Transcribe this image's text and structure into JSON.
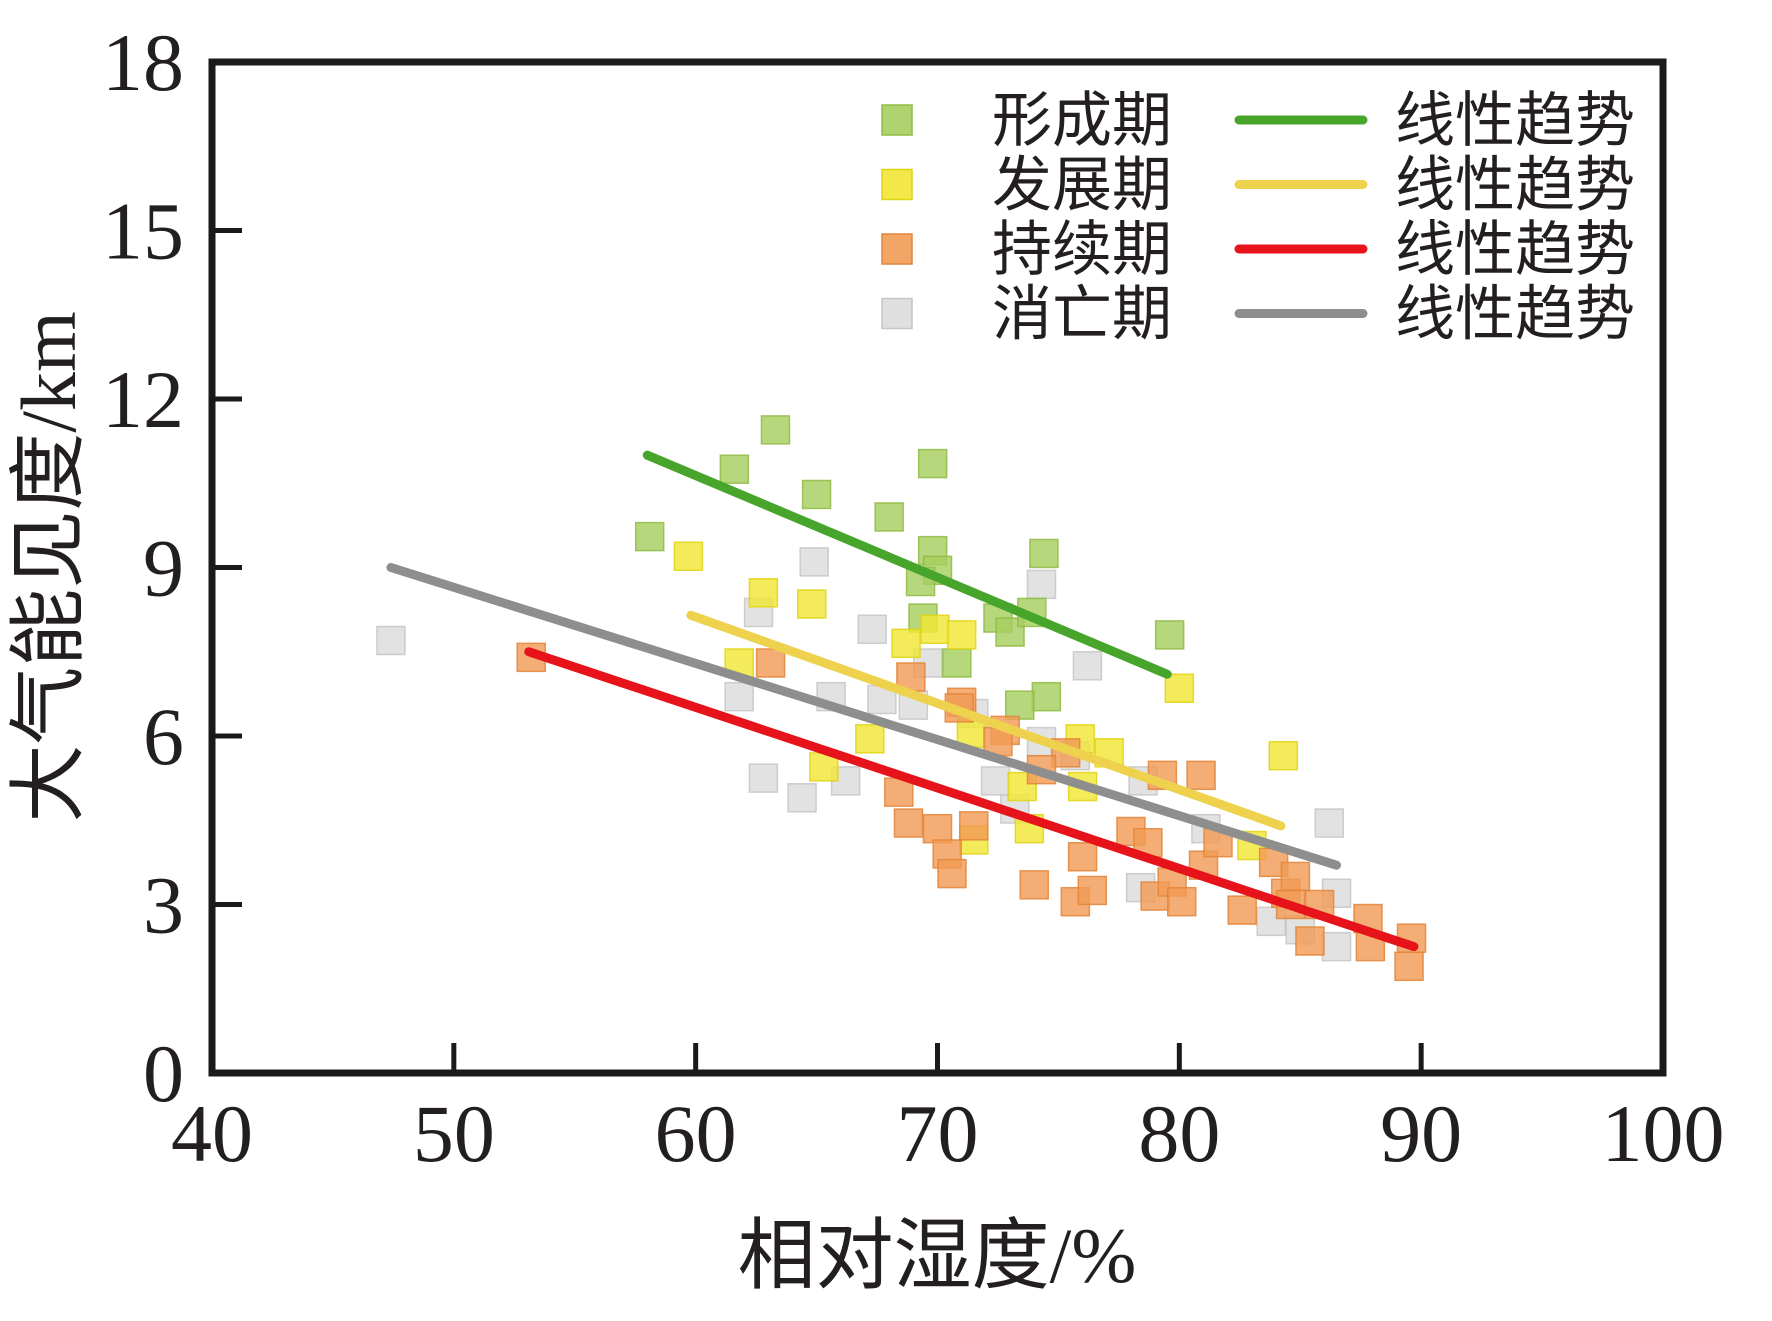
{
  "figure": {
    "background": "#ffffff",
    "frame_color": "#1a1a1a"
  },
  "chart_data": {
    "type": "scatter",
    "title": "",
    "xlabel": "相对湿度/%",
    "ylabel": "大气能见度/km",
    "xlim": [
      40,
      100
    ],
    "ylim": [
      0,
      18
    ],
    "x_ticks": [
      40,
      50,
      60,
      70,
      80,
      90,
      100
    ],
    "y_ticks": [
      0,
      3,
      6,
      9,
      12,
      15,
      18
    ],
    "grid": false,
    "legend_position": "top-inside",
    "trend_legend_label": "线性趋势",
    "series": [
      {
        "key": "formation",
        "name": "形成期",
        "marker": "square",
        "marker_color": "#a6ce5f",
        "marker_edge": "#90bb45",
        "trend_color": "#47a52b",
        "trend": {
          "x": [
            58.0,
            79.5
          ],
          "y": [
            11.0,
            7.1
          ]
        },
        "points": [
          [
            58.1,
            9.55
          ],
          [
            61.6,
            10.75
          ],
          [
            63.3,
            11.45
          ],
          [
            65.0,
            10.3
          ],
          [
            68.0,
            9.9
          ],
          [
            69.8,
            10.85
          ],
          [
            69.8,
            9.3
          ],
          [
            70.0,
            8.95
          ],
          [
            69.3,
            8.75
          ],
          [
            69.4,
            8.1
          ],
          [
            70.8,
            7.3
          ],
          [
            72.5,
            8.1
          ],
          [
            73.0,
            7.85
          ],
          [
            73.9,
            8.2
          ],
          [
            74.4,
            9.25
          ],
          [
            74.5,
            6.7
          ],
          [
            73.4,
            6.55
          ],
          [
            79.6,
            7.8
          ]
        ]
      },
      {
        "key": "development",
        "name": "发展期",
        "marker": "square",
        "marker_color": "#f2e636",
        "marker_edge": "#e0d314",
        "trend_color": "#eed24e",
        "trend": {
          "x": [
            59.8,
            84.2
          ],
          "y": [
            8.15,
            4.4
          ]
        },
        "points": [
          [
            59.7,
            9.2
          ],
          [
            61.8,
            7.3
          ],
          [
            62.8,
            8.55
          ],
          [
            64.8,
            8.35
          ],
          [
            65.3,
            5.45
          ],
          [
            67.2,
            5.95
          ],
          [
            68.7,
            7.65
          ],
          [
            69.9,
            7.9
          ],
          [
            71.0,
            7.8
          ],
          [
            71.4,
            6.05
          ],
          [
            71.5,
            4.15
          ],
          [
            73.5,
            5.1
          ],
          [
            73.8,
            4.35
          ],
          [
            75.9,
            5.95
          ],
          [
            76.0,
            5.1
          ],
          [
            77.1,
            5.7
          ],
          [
            80.0,
            6.85
          ],
          [
            83.0,
            4.05
          ],
          [
            84.3,
            5.65
          ]
        ]
      },
      {
        "key": "persistence",
        "name": "持续期",
        "marker": "square",
        "marker_color": "#f29b55",
        "marker_edge": "#e3853a",
        "trend_color": "#e7131a",
        "trend": {
          "x": [
            53.1,
            89.7
          ],
          "y": [
            7.5,
            2.25
          ]
        },
        "points": [
          [
            53.2,
            7.4
          ],
          [
            63.1,
            7.3
          ],
          [
            68.9,
            7.05
          ],
          [
            71.0,
            6.6
          ],
          [
            70.9,
            6.5
          ],
          [
            72.8,
            6.1
          ],
          [
            72.5,
            5.9
          ],
          [
            75.3,
            5.7
          ],
          [
            74.3,
            5.4
          ],
          [
            68.4,
            5.0
          ],
          [
            68.8,
            4.45
          ],
          [
            70.0,
            4.35
          ],
          [
            71.5,
            4.4
          ],
          [
            70.4,
            3.9
          ],
          [
            70.6,
            3.55
          ],
          [
            74.0,
            3.35
          ],
          [
            75.7,
            3.05
          ],
          [
            76.4,
            3.25
          ],
          [
            76.0,
            3.85
          ],
          [
            78.0,
            4.3
          ],
          [
            78.7,
            4.1
          ],
          [
            79.3,
            5.3
          ],
          [
            80.9,
            5.3
          ],
          [
            79.0,
            3.15
          ],
          [
            79.7,
            3.4
          ],
          [
            80.1,
            3.05
          ],
          [
            81.0,
            3.7
          ],
          [
            81.6,
            4.1
          ],
          [
            82.6,
            2.9
          ],
          [
            83.9,
            3.75
          ],
          [
            84.4,
            3.2
          ],
          [
            84.8,
            3.5
          ],
          [
            84.6,
            3.0
          ],
          [
            85.8,
            3.0
          ],
          [
            85.4,
            2.35
          ],
          [
            87.8,
            2.75
          ],
          [
            87.9,
            2.25
          ],
          [
            89.6,
            2.4
          ],
          [
            89.5,
            1.9
          ]
        ]
      },
      {
        "key": "dissipation",
        "name": "消亡期",
        "marker": "square",
        "marker_color": "#dcdcdc",
        "marker_edge": "#c6c6c6",
        "trend_color": "#8e8e8e",
        "trend": {
          "x": [
            47.4,
            86.5
          ],
          "y": [
            9.0,
            3.7
          ]
        },
        "points": [
          [
            47.4,
            7.7
          ],
          [
            62.6,
            8.2
          ],
          [
            64.9,
            9.1
          ],
          [
            67.3,
            7.9
          ],
          [
            69.6,
            7.3
          ],
          [
            74.3,
            8.7
          ],
          [
            76.2,
            7.25
          ],
          [
            61.8,
            6.7
          ],
          [
            65.6,
            6.7
          ],
          [
            67.7,
            6.65
          ],
          [
            69.0,
            6.55
          ],
          [
            71.5,
            6.4
          ],
          [
            74.3,
            5.9
          ],
          [
            75.7,
            5.65
          ],
          [
            62.8,
            5.25
          ],
          [
            66.2,
            5.2
          ],
          [
            64.4,
            4.9
          ],
          [
            72.4,
            5.2
          ],
          [
            73.2,
            4.7
          ],
          [
            78.5,
            5.2
          ],
          [
            81.1,
            4.35
          ],
          [
            86.2,
            4.45
          ],
          [
            78.4,
            3.3
          ],
          [
            83.8,
            2.7
          ],
          [
            85.0,
            2.55
          ],
          [
            86.5,
            3.2
          ],
          [
            86.5,
            2.25
          ]
        ]
      }
    ]
  }
}
